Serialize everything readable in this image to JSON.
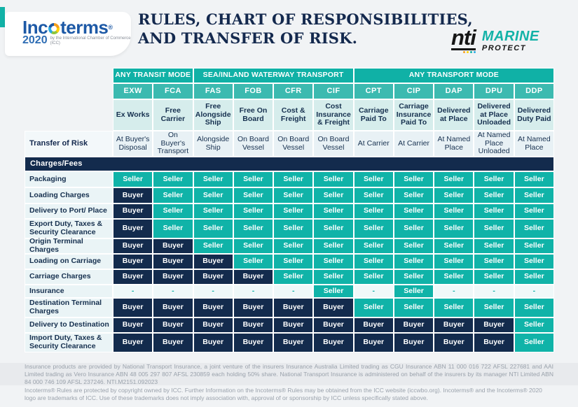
{
  "brand": {
    "incoterms": {
      "word_start": "Inc",
      "word_end": "terms",
      "registered": "®",
      "year": "2020",
      "subtext": "by the International Chamber of Commerce (ICC)"
    },
    "title_line1": "RULES, CHART OF RESPONSIBILITIES,",
    "title_line2": "AND TRANSFER OF RISK.",
    "nti": {
      "name": "nti",
      "product": "MARINE",
      "sub": "PROTECT"
    }
  },
  "colors": {
    "teal": "#12b2a7",
    "teal_light": "#3cbab0",
    "teal_pale": "#d6edec",
    "navy": "#132b4d",
    "page_bg": "#f1f3f5",
    "footer_band_bg": "#e8eaed"
  },
  "table": {
    "groups": [
      {
        "label": "ANY TRANSIT MODE",
        "span": 2
      },
      {
        "label": "SEA/INLAND WATERWAY TRANSPORT",
        "span": 4
      },
      {
        "label": "ANY TRANSPORT MODE",
        "span": 5
      }
    ],
    "columns": [
      {
        "code": "EXW",
        "name": "Ex Works",
        "risk": "At Buyer's Disposal"
      },
      {
        "code": "FCA",
        "name": "Free Carrier",
        "risk": "On Buyer's Transport"
      },
      {
        "code": "FAS",
        "name": "Free Alongside Ship",
        "risk": "Alongside Ship"
      },
      {
        "code": "FOB",
        "name": "Free On Board",
        "risk": "On Board Vessel"
      },
      {
        "code": "CFR",
        "name": "Cost & Freight",
        "risk": "On Board Vessel"
      },
      {
        "code": "CIF",
        "name": "Cost Insurance & Freight",
        "risk": "On Board Vessel"
      },
      {
        "code": "CPT",
        "name": "Carriage Paid To",
        "risk": "At Carrier"
      },
      {
        "code": "CIP",
        "name": "Carriage Insurance Paid To",
        "risk": "At Carrier"
      },
      {
        "code": "DAP",
        "name": "Delivered at Place",
        "risk": "At Named Place"
      },
      {
        "code": "DPU",
        "name": "Delivered at Place Unloaded",
        "risk": "At Named Place Unloaded"
      },
      {
        "code": "DDP",
        "name": "Delivered Duty Paid",
        "risk": "At Named Place"
      }
    ],
    "risk_row_label": "Transfer of Risk",
    "section_label": "Charges/Fees",
    "cell_labels": {
      "S": "Seller",
      "B": "Buyer",
      "-": "-"
    },
    "rows": [
      {
        "label": "Packaging",
        "values": [
          "S",
          "S",
          "S",
          "S",
          "S",
          "S",
          "S",
          "S",
          "S",
          "S",
          "S"
        ]
      },
      {
        "label": "Loading Charges",
        "values": [
          "B",
          "S",
          "S",
          "S",
          "S",
          "S",
          "S",
          "S",
          "S",
          "S",
          "S"
        ]
      },
      {
        "label": "Delivery to Port/ Place",
        "values": [
          "B",
          "S",
          "S",
          "S",
          "S",
          "S",
          "S",
          "S",
          "S",
          "S",
          "S"
        ]
      },
      {
        "label": "Export Duty, Taxes & Security Clearance",
        "values": [
          "B",
          "S",
          "S",
          "S",
          "S",
          "S",
          "S",
          "S",
          "S",
          "S",
          "S"
        ]
      },
      {
        "label": "Origin Terminal Charges",
        "values": [
          "B",
          "B",
          "S",
          "S",
          "S",
          "S",
          "S",
          "S",
          "S",
          "S",
          "S"
        ]
      },
      {
        "label": "Loading on Carriage",
        "values": [
          "B",
          "B",
          "B",
          "S",
          "S",
          "S",
          "S",
          "S",
          "S",
          "S",
          "S"
        ]
      },
      {
        "label": "Carriage Charges",
        "values": [
          "B",
          "B",
          "B",
          "B",
          "S",
          "S",
          "S",
          "S",
          "S",
          "S",
          "S"
        ]
      },
      {
        "label": "Insurance",
        "values": [
          "-",
          "-",
          "-",
          "-",
          "-",
          "S",
          "-",
          "S",
          "-",
          "-",
          "-"
        ]
      },
      {
        "label": "Destination Terminal Charges",
        "values": [
          "B",
          "B",
          "B",
          "B",
          "B",
          "B",
          "S",
          "S",
          "S",
          "S",
          "S"
        ]
      },
      {
        "label": "Delivery to Destination",
        "values": [
          "B",
          "B",
          "B",
          "B",
          "B",
          "B",
          "B",
          "B",
          "B",
          "B",
          "S"
        ]
      },
      {
        "label": "Import Duty, Taxes & Security Clearance",
        "values": [
          "B",
          "B",
          "B",
          "B",
          "B",
          "B",
          "B",
          "B",
          "B",
          "B",
          "S"
        ]
      }
    ]
  },
  "footer": {
    "insurance_disclaimer": "Insurance products are provided by National Transport Insurance, a joint venture of the insurers Insurance Australia Limited trading as CGU Insurance ABN 11 000 016 722 AFSL 227681 and AAI Limited trading as Vero Insurance ABN 48 005 297 807 AFSL 230859 each holding 50% share. National Transport Insurance is administered on behalf of the insurers by its manager NTI Limited ABN 84 000 746 109 AFSL 237246.   NTI.M2151.092023",
    "icc_disclaimer": "Incoterms® Rules are protected by copyright owned by ICC. Further Information on the Incoterms® Rules may be obtained from the ICC website (iccwbo.org). Incoterms® and the Incoterms® 2020 logo are trademarks of ICC. Use of these trademarks does not imply association with, approval of or sponsorship by ICC unless specifically stated above."
  }
}
